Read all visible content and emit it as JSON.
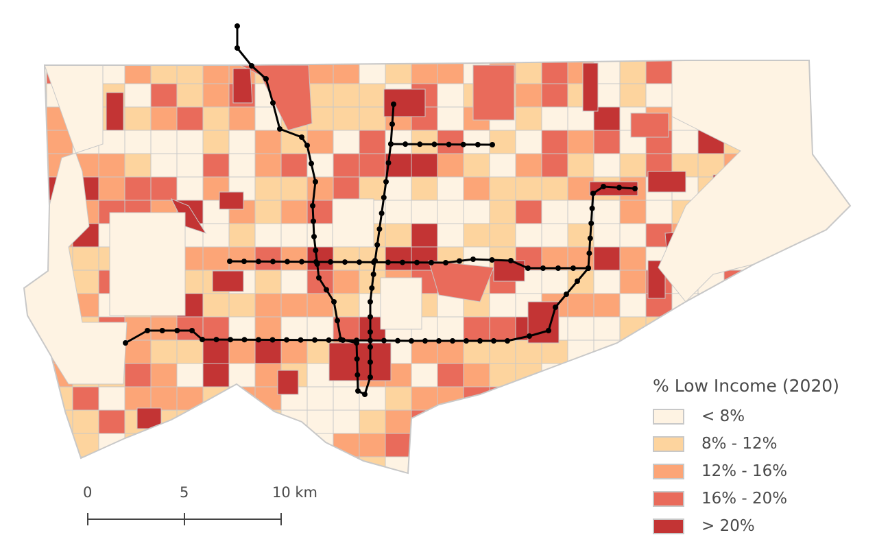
{
  "legend": {
    "title": "% Low Income (2020)",
    "classes": [
      {
        "label": "< 8%",
        "color": "#fef3e3"
      },
      {
        "label": "8% - 12%",
        "color": "#fdd49e"
      },
      {
        "label": "12% - 16%",
        "color": "#fca577"
      },
      {
        "label": "16% - 20%",
        "color": "#e96b5b"
      },
      {
        "label": "> 20%",
        "color": "#c33434"
      }
    ]
  },
  "scale_bar": {
    "labels": [
      "0",
      "5",
      "10 km"
    ]
  },
  "colors": {
    "boundary": "#c8c8c8",
    "transit_line": "#000000",
    "water": "#ffffff"
  }
}
